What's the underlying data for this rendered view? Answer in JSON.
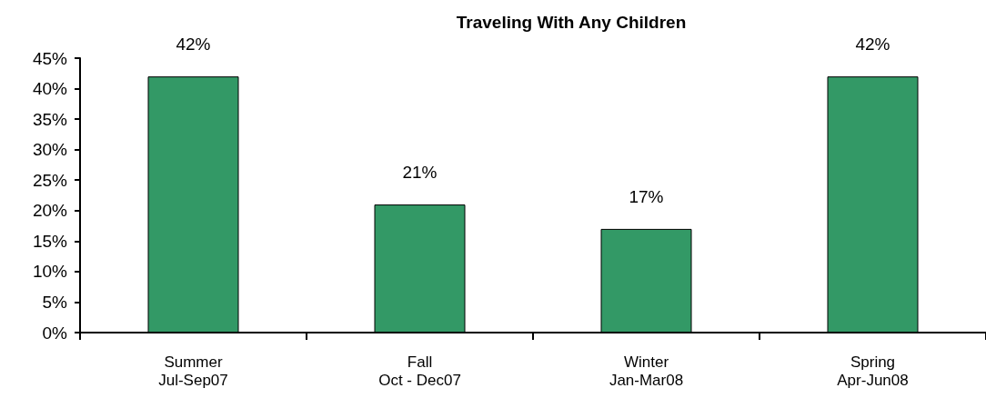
{
  "chart_data": {
    "type": "bar",
    "title": "Traveling With Any Children",
    "categories": [
      "Summer\nJul-Sep07",
      "Fall\nOct - Dec07",
      "Winter\nJan-Mar08",
      "Spring\nApr-Jun08"
    ],
    "values": [
      42,
      21,
      17,
      42
    ],
    "value_labels": [
      "42%",
      "21%",
      "17%",
      "42%"
    ],
    "color": "#339966",
    "ylim": [
      0,
      45
    ],
    "yticks": [
      {
        "value": 0,
        "label": "0%"
      },
      {
        "value": 5,
        "label": "5%"
      },
      {
        "value": 10,
        "label": "10%"
      },
      {
        "value": 15,
        "label": "15%"
      },
      {
        "value": 20,
        "label": "20%"
      },
      {
        "value": 25,
        "label": "25%"
      },
      {
        "value": 30,
        "label": "30%"
      },
      {
        "value": 35,
        "label": "35%"
      },
      {
        "value": 40,
        "label": "40%"
      },
      {
        "value": 45,
        "label": "45%"
      }
    ],
    "grid": false
  }
}
